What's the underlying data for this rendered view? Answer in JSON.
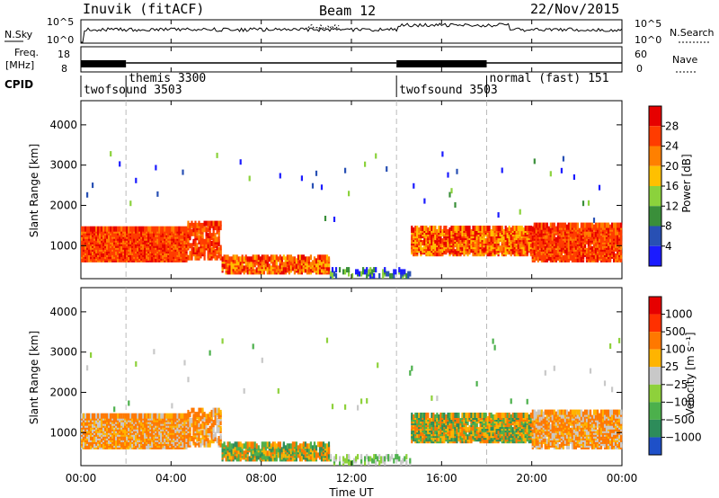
{
  "header": {
    "station": "Inuvik (fitACF)",
    "beam": "Beam 12",
    "date": "22/Nov/2015"
  },
  "strips": {
    "nsky_label": "N.Sky",
    "nsearch_label": "N.Search",
    "nsky_ticks": [
      "10^5",
      "10^0"
    ],
    "nsky_ticks_right": [
      "10^5",
      "10^0"
    ],
    "freq_label": "Freq.",
    "freq_unit": "[MHz]",
    "freq_ticks": [
      "18",
      "8"
    ],
    "nave_label": "Nave",
    "nave_ticks": [
      "60",
      "0"
    ],
    "cpid_label": "CPID"
  },
  "chart_data": [
    {
      "type": "table",
      "name_panel": "CPID",
      "segments": [
        {
          "label": "twofsound 3503",
          "start": "00:00",
          "end": "02:00"
        },
        {
          "label": "themis 3300",
          "start": "02:00",
          "end": "14:00"
        },
        {
          "label": "twofsound 3503",
          "start": "14:00",
          "end": "18:00"
        },
        {
          "label": "normal (fast) 151",
          "start": "18:00",
          "end": "24:00"
        }
      ]
    },
    {
      "type": "heatmap",
      "panel": "power",
      "ylabel": "Slant Range [km]",
      "yticks": [
        "1000",
        "2000",
        "3000",
        "4000"
      ],
      "ylim": [
        180,
        4600
      ],
      "xlim": [
        0,
        24
      ],
      "colorbar_label": "Power [dB]",
      "colorbar_ticks": [
        "4",
        "8",
        "12",
        "16",
        "20",
        "24",
        "28"
      ],
      "colorbar_range": [
        0,
        32
      ],
      "colors": [
        "#1b1bff",
        "#2850b4",
        "#3a8f3a",
        "#8bd23c",
        "#ffc000",
        "#ff8000",
        "#ff3c00",
        "#e60000"
      ]
    },
    {
      "type": "heatmap",
      "panel": "velocity",
      "ylabel": "Slant Range [km]",
      "yticks": [
        "1000",
        "2000",
        "3000",
        "4000"
      ],
      "ylim": [
        180,
        4600
      ],
      "xlim": [
        0,
        24
      ],
      "colorbar_label": "Velocity [m s⁻¹]",
      "colorbar_ticks": [
        "1000",
        "500",
        "100",
        "25",
        "−25",
        "−100",
        "−500",
        "−1000"
      ],
      "colors": [
        "#1e50c8",
        "#2d8c5a",
        "#4cb04c",
        "#8ed13b",
        "#c8c8c8",
        "#ffb400",
        "#ff7800",
        "#ff3000",
        "#e60000"
      ]
    }
  ],
  "xaxis": {
    "ticks": [
      "00:00",
      "04:00",
      "08:00",
      "12:00",
      "16:00",
      "20:00",
      "00:00"
    ],
    "label": "Time UT"
  }
}
